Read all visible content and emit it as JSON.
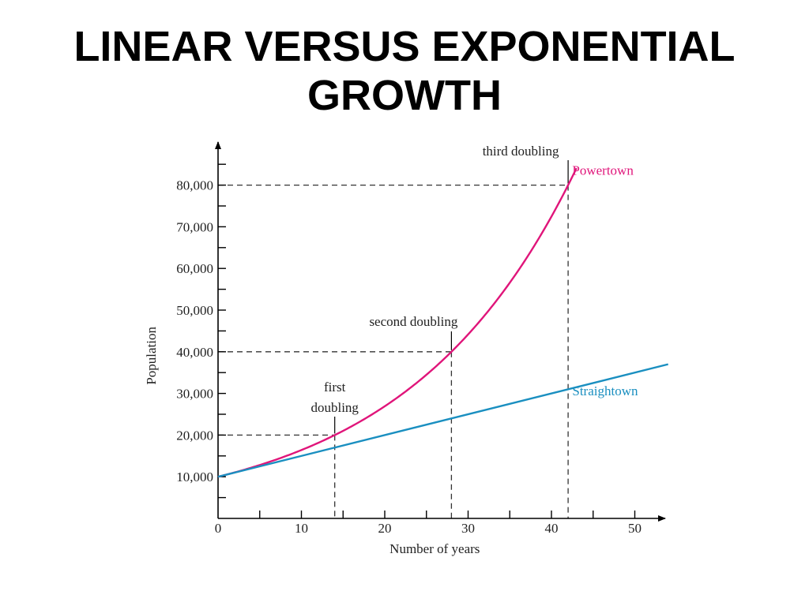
{
  "slide": {
    "title_line1": "LINEAR VERSUS EXPONENTIAL",
    "title_line2": "GROWTH"
  },
  "chart_data": {
    "type": "line",
    "xlabel": "Number of years",
    "ylabel": "Population",
    "xlim": [
      0,
      54
    ],
    "ylim": [
      0,
      90000
    ],
    "x_ticks": [
      0,
      10,
      20,
      30,
      40,
      50
    ],
    "x_tick_labels": [
      "0",
      "10",
      "20",
      "30",
      "40",
      "50"
    ],
    "y_ticks": [
      10000,
      20000,
      30000,
      40000,
      50000,
      60000,
      70000,
      80000
    ],
    "y_tick_labels": [
      "10,000",
      "20,000",
      "30,000",
      "40,000",
      "50,000",
      "60,000",
      "70,000",
      "80,000"
    ],
    "grid": false,
    "series": [
      {
        "name": "Powertown",
        "color": "#e0157a",
        "kind": "exponential",
        "start": 10000,
        "doubling_time_years": 14,
        "x_end": 43
      },
      {
        "name": "Straightown",
        "color": "#1a8fc0",
        "kind": "linear",
        "start": 10000,
        "slope_per_year": 500,
        "x_end": 54
      }
    ],
    "annotations": [
      {
        "lines": [
          "first",
          "doubling"
        ],
        "x": 14,
        "y": 20000
      },
      {
        "lines": [
          "second doubling"
        ],
        "x": 28,
        "y": 40000
      },
      {
        "lines": [
          "third doubling"
        ],
        "x": 42,
        "y": 80000
      }
    ]
  }
}
